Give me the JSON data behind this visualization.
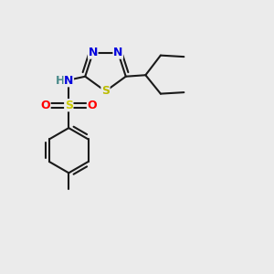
{
  "bg_color": "#ebebeb",
  "bond_color": "#1a1a1a",
  "bond_width": 1.5,
  "atom_colors": {
    "N": "#0000dd",
    "S_thia": "#bbbb00",
    "S_sulfon": "#cccc00",
    "O": "#ff0000",
    "H": "#4a8a8a",
    "C": "#1a1a1a"
  },
  "font_size_atom": 9,
  "font_size_H": 9
}
